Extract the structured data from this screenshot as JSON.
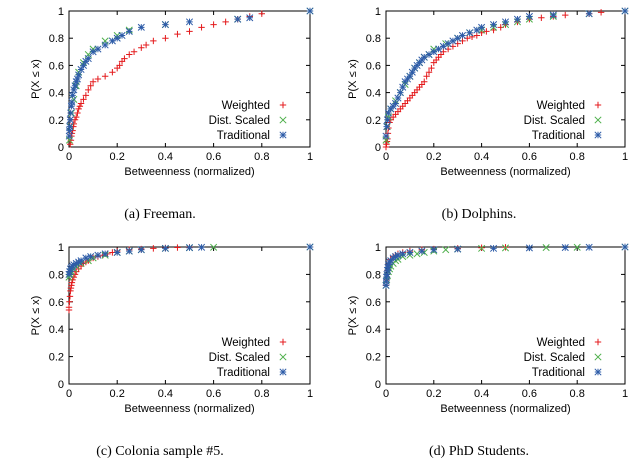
{
  "chart_data": [
    {
      "type": "scatter",
      "caption": "(a) Freeman.",
      "xlabel": "Betweenness (normalized)",
      "ylabel": "P(X ≤ x)",
      "xlim": [
        0,
        1
      ],
      "ylim": [
        0,
        1
      ],
      "xticks": [
        "0",
        "0.2",
        "0.4",
        "0.6",
        "0.8",
        "1"
      ],
      "yticks": [
        "0",
        "0.2",
        "0.4",
        "0.6",
        "0.8",
        "1"
      ],
      "grid": false,
      "legend": "bottom-right",
      "series": [
        {
          "name": "Weighted",
          "marker": "+",
          "color": "#e41a1c",
          "x": [
            0.005,
            0.008,
            0.01,
            0.012,
            0.015,
            0.018,
            0.02,
            0.025,
            0.03,
            0.035,
            0.04,
            0.045,
            0.05,
            0.06,
            0.07,
            0.08,
            0.09,
            0.1,
            0.12,
            0.15,
            0.18,
            0.2,
            0.21,
            0.22,
            0.23,
            0.25,
            0.27,
            0.3,
            0.32,
            0.35,
            0.4,
            0.45,
            0.5,
            0.55,
            0.6,
            0.65,
            0.7,
            0.75,
            0.8
          ],
          "y": [
            0.02,
            0.05,
            0.08,
            0.1,
            0.12,
            0.15,
            0.17,
            0.2,
            0.22,
            0.25,
            0.28,
            0.3,
            0.32,
            0.35,
            0.38,
            0.42,
            0.45,
            0.48,
            0.5,
            0.52,
            0.55,
            0.58,
            0.6,
            0.63,
            0.65,
            0.68,
            0.7,
            0.73,
            0.75,
            0.78,
            0.8,
            0.83,
            0.85,
            0.88,
            0.9,
            0.92,
            0.94,
            0.96,
            0.98
          ]
        },
        {
          "name": "Dist. Scaled",
          "marker": "x",
          "color": "#4daf4a",
          "x": [
            0.002,
            0.005,
            0.01,
            0.02,
            0.03,
            0.04,
            0.06,
            0.08,
            0.1,
            0.15,
            0.2,
            0.25,
            0.4,
            0.7,
            1.0
          ],
          "y": [
            0.05,
            0.15,
            0.25,
            0.35,
            0.45,
            0.55,
            0.62,
            0.68,
            0.72,
            0.78,
            0.82,
            0.86,
            0.9,
            0.94,
            1.0
          ]
        },
        {
          "name": "Traditional",
          "marker": "*",
          "color": "#2e5ca8",
          "x": [
            0.001,
            0.002,
            0.003,
            0.005,
            0.007,
            0.01,
            0.012,
            0.015,
            0.02,
            0.025,
            0.03,
            0.035,
            0.04,
            0.05,
            0.06,
            0.07,
            0.08,
            0.1,
            0.12,
            0.15,
            0.18,
            0.2,
            0.22,
            0.25,
            0.3,
            0.4,
            0.5,
            0.7,
            0.75,
            1.0
          ],
          "y": [
            0.08,
            0.12,
            0.15,
            0.2,
            0.25,
            0.3,
            0.33,
            0.38,
            0.42,
            0.45,
            0.48,
            0.5,
            0.53,
            0.57,
            0.6,
            0.63,
            0.65,
            0.7,
            0.72,
            0.75,
            0.78,
            0.8,
            0.82,
            0.85,
            0.88,
            0.9,
            0.92,
            0.94,
            0.95,
            1.0
          ]
        }
      ]
    },
    {
      "type": "scatter",
      "caption": "(b) Dolphins.",
      "xlabel": "Betweenness (normalized)",
      "ylabel": "P(X ≤ x)",
      "xlim": [
        0,
        1
      ],
      "ylim": [
        0,
        1
      ],
      "xticks": [
        "0",
        "0.2",
        "0.4",
        "0.6",
        "0.8",
        "1"
      ],
      "yticks": [
        "0",
        "0.2",
        "0.4",
        "0.6",
        "0.8",
        "1"
      ],
      "grid": false,
      "legend": "bottom-right",
      "series": [
        {
          "name": "Weighted",
          "marker": "+",
          "color": "#e41a1c",
          "x": [
            0.0,
            0.002,
            0.004,
            0.006,
            0.008,
            0.01,
            0.015,
            0.02,
            0.03,
            0.04,
            0.05,
            0.06,
            0.07,
            0.08,
            0.09,
            0.1,
            0.11,
            0.12,
            0.13,
            0.14,
            0.15,
            0.16,
            0.17,
            0.18,
            0.19,
            0.2,
            0.21,
            0.22,
            0.23,
            0.24,
            0.26,
            0.28,
            0.3,
            0.32,
            0.34,
            0.36,
            0.38,
            0.4,
            0.42,
            0.45,
            0.48,
            0.5,
            0.55,
            0.6,
            0.65,
            0.7,
            0.75,
            0.85,
            0.9,
            1.0
          ],
          "y": [
            0.0,
            0.02,
            0.04,
            0.06,
            0.1,
            0.14,
            0.18,
            0.2,
            0.22,
            0.24,
            0.26,
            0.28,
            0.3,
            0.32,
            0.34,
            0.36,
            0.38,
            0.4,
            0.42,
            0.44,
            0.46,
            0.48,
            0.52,
            0.55,
            0.58,
            0.62,
            0.64,
            0.66,
            0.68,
            0.7,
            0.72,
            0.74,
            0.76,
            0.78,
            0.8,
            0.81,
            0.82,
            0.84,
            0.85,
            0.86,
            0.88,
            0.9,
            0.92,
            0.94,
            0.95,
            0.96,
            0.97,
            0.98,
            0.99,
            1.0
          ]
        },
        {
          "name": "Dist. Scaled",
          "marker": "x",
          "color": "#4daf4a",
          "x": [
            0.0,
            0.005,
            0.01,
            0.02,
            0.04,
            0.06,
            0.08,
            0.1,
            0.12,
            0.14,
            0.16,
            0.18,
            0.2,
            0.25,
            0.3,
            0.35,
            0.4,
            0.45,
            0.5,
            0.55,
            0.6,
            0.7,
            0.85,
            1.0
          ],
          "y": [
            0.05,
            0.15,
            0.22,
            0.28,
            0.34,
            0.4,
            0.46,
            0.52,
            0.58,
            0.62,
            0.66,
            0.68,
            0.72,
            0.76,
            0.8,
            0.84,
            0.86,
            0.88,
            0.9,
            0.92,
            0.94,
            0.96,
            0.98,
            1.0
          ]
        },
        {
          "name": "Traditional",
          "marker": "*",
          "color": "#2e5ca8",
          "x": [
            0.0,
            0.003,
            0.006,
            0.01,
            0.02,
            0.03,
            0.04,
            0.05,
            0.06,
            0.07,
            0.08,
            0.09,
            0.1,
            0.11,
            0.12,
            0.13,
            0.14,
            0.15,
            0.16,
            0.18,
            0.2,
            0.22,
            0.24,
            0.26,
            0.28,
            0.3,
            0.32,
            0.35,
            0.38,
            0.4,
            0.45,
            0.5,
            0.55,
            0.6,
            0.7,
            0.85,
            1.0
          ],
          "y": [
            0.08,
            0.15,
            0.2,
            0.25,
            0.28,
            0.3,
            0.32,
            0.36,
            0.4,
            0.44,
            0.48,
            0.5,
            0.52,
            0.55,
            0.58,
            0.6,
            0.62,
            0.64,
            0.66,
            0.68,
            0.7,
            0.72,
            0.74,
            0.76,
            0.78,
            0.8,
            0.82,
            0.84,
            0.86,
            0.88,
            0.9,
            0.92,
            0.94,
            0.96,
            0.97,
            0.98,
            1.0
          ]
        }
      ]
    },
    {
      "type": "scatter",
      "caption": "(c) Colonia sample #5.",
      "xlabel": "Betweenness (normalized)",
      "ylabel": "P(X ≤ x)",
      "xlim": [
        0,
        1
      ],
      "ylim": [
        0,
        1
      ],
      "xticks": [
        "0",
        "0.2",
        "0.4",
        "0.6",
        "0.8",
        "1"
      ],
      "yticks": [
        "0",
        "0.2",
        "0.4",
        "0.6",
        "0.8",
        "1"
      ],
      "grid": false,
      "legend": "bottom-right",
      "series": [
        {
          "name": "Weighted",
          "marker": "+",
          "color": "#e41a1c",
          "x": [
            0.0,
            0.0,
            0.002,
            0.004,
            0.006,
            0.008,
            0.01,
            0.012,
            0.015,
            0.02,
            0.025,
            0.03,
            0.04,
            0.05,
            0.06,
            0.07,
            0.08,
            0.1,
            0.12,
            0.14,
            0.16,
            0.18,
            0.2,
            0.25,
            0.3,
            0.35,
            0.4,
            0.45,
            0.5,
            1.0
          ],
          "y": [
            0.54,
            0.56,
            0.6,
            0.64,
            0.68,
            0.7,
            0.72,
            0.74,
            0.76,
            0.78,
            0.8,
            0.82,
            0.84,
            0.86,
            0.88,
            0.89,
            0.9,
            0.92,
            0.93,
            0.94,
            0.95,
            0.96,
            0.97,
            0.98,
            0.985,
            0.99,
            0.993,
            0.996,
            0.998,
            1.0
          ]
        },
        {
          "name": "Dist. Scaled",
          "marker": "x",
          "color": "#4daf4a",
          "x": [
            0.0,
            0.005,
            0.01,
            0.02,
            0.03,
            0.05,
            0.08,
            0.1,
            0.15,
            0.2,
            0.25,
            0.3,
            0.4,
            0.5,
            0.6,
            1.0
          ],
          "y": [
            0.78,
            0.8,
            0.82,
            0.84,
            0.86,
            0.88,
            0.9,
            0.92,
            0.94,
            0.96,
            0.97,
            0.98,
            0.99,
            0.995,
            0.998,
            1.0
          ]
        },
        {
          "name": "Traditional",
          "marker": "*",
          "color": "#2e5ca8",
          "x": [
            0.0,
            0.003,
            0.006,
            0.01,
            0.015,
            0.02,
            0.03,
            0.04,
            0.05,
            0.07,
            0.09,
            0.12,
            0.15,
            0.2,
            0.25,
            0.3,
            0.4,
            0.5,
            0.55,
            1.0
          ],
          "y": [
            0.8,
            0.82,
            0.84,
            0.85,
            0.86,
            0.87,
            0.88,
            0.89,
            0.9,
            0.92,
            0.93,
            0.94,
            0.95,
            0.96,
            0.97,
            0.98,
            0.99,
            0.995,
            0.998,
            1.0
          ]
        }
      ]
    },
    {
      "type": "scatter",
      "caption": "(d) PhD Students.",
      "xlabel": "Betweenness (normalized)",
      "ylabel": "P(X ≤ x)",
      "xlim": [
        0,
        1
      ],
      "ylim": [
        0,
        1
      ],
      "xticks": [
        "0",
        "0.2",
        "0.4",
        "0.6",
        "0.8",
        "1"
      ],
      "yticks": [
        "0",
        "0.2",
        "0.4",
        "0.6",
        "0.8",
        "1"
      ],
      "grid": false,
      "legend": "bottom-right",
      "series": [
        {
          "name": "Weighted",
          "marker": "+",
          "color": "#e41a1c",
          "x": [
            0.0,
            0.002,
            0.004,
            0.006,
            0.008,
            0.01,
            0.015,
            0.02,
            0.03,
            0.04,
            0.05,
            0.07,
            0.1,
            0.15,
            0.2,
            0.3,
            0.4,
            0.5,
            1.0
          ],
          "y": [
            0.72,
            0.76,
            0.8,
            0.83,
            0.85,
            0.87,
            0.89,
            0.91,
            0.93,
            0.94,
            0.95,
            0.96,
            0.97,
            0.98,
            0.985,
            0.99,
            0.995,
            0.998,
            1.0
          ]
        },
        {
          "name": "Dist. Scaled",
          "marker": "x",
          "color": "#4daf4a",
          "x": [
            0.0,
            0.003,
            0.006,
            0.01,
            0.015,
            0.02,
            0.03,
            0.04,
            0.05,
            0.07,
            0.1,
            0.13,
            0.16,
            0.2,
            0.25,
            0.3,
            0.4,
            0.5,
            0.67,
            0.8,
            1.0
          ],
          "y": [
            0.72,
            0.76,
            0.79,
            0.82,
            0.84,
            0.86,
            0.88,
            0.9,
            0.91,
            0.93,
            0.94,
            0.95,
            0.96,
            0.97,
            0.98,
            0.985,
            0.99,
            0.993,
            0.996,
            0.998,
            1.0
          ]
        },
        {
          "name": "Traditional",
          "marker": "*",
          "color": "#2e5ca8",
          "x": [
            0.0,
            0.001,
            0.002,
            0.004,
            0.006,
            0.008,
            0.01,
            0.015,
            0.02,
            0.03,
            0.04,
            0.05,
            0.07,
            0.1,
            0.15,
            0.2,
            0.3,
            0.45,
            0.6,
            0.75,
            0.85,
            1.0
          ],
          "y": [
            0.72,
            0.75,
            0.78,
            0.8,
            0.83,
            0.85,
            0.87,
            0.89,
            0.9,
            0.92,
            0.93,
            0.94,
            0.95,
            0.96,
            0.97,
            0.98,
            0.985,
            0.99,
            0.993,
            0.996,
            0.998,
            1.0
          ]
        }
      ]
    }
  ]
}
